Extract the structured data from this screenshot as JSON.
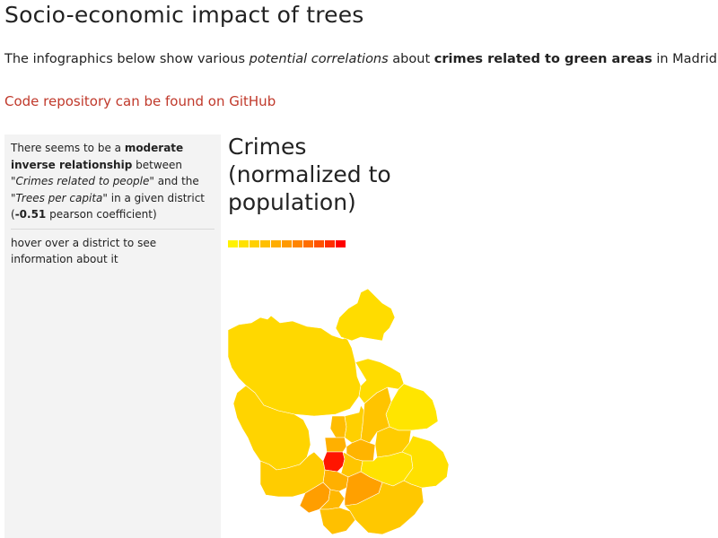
{
  "page": {
    "title": "Socio-economic impact of trees",
    "intro": {
      "p1": "The infographics below show various ",
      "em": "potential correlations",
      "p2": " about ",
      "strong": "crimes related to green areas",
      "p3": " in Madrid."
    },
    "repo_link": "Code repository can be found on GitHub"
  },
  "sidebar": {
    "summary": {
      "t1": "There seems to be a ",
      "b1": "moderate inverse relationship",
      "t2": " between ",
      "i1": "\"Crimes related to people\"",
      "t3": " and the ",
      "i2": "\"Trees per capita\"",
      "t4": " in a given district (",
      "b2": "-0.51",
      "t5": " pearson coefficient)"
    },
    "hint": "hover over a district to see information about it"
  },
  "map": {
    "title": "Crimes (normalized to population)",
    "legend_colors": [
      "#fff200",
      "#ffe100",
      "#ffd000",
      "#ffbf00",
      "#ffad00",
      "#ff9a00",
      "#ff8500",
      "#ff6e00",
      "#ff5200",
      "#ff2e00",
      "#ff0000"
    ],
    "district_colors": {
      "fuencarral": "#ffd800",
      "moncloa": "#ffd400",
      "hortaleza": "#ffdc00",
      "barajas": "#ffe500",
      "tetuan": "#ffbd00",
      "chamartin": "#ffd000",
      "chamberi": "#ffb000",
      "ciudad_lineal": "#ffc400",
      "san_blas": "#ffcc00",
      "latina": "#ffcc00",
      "centro": "#ff1500",
      "arganzuela": "#ffb000",
      "retiro": "#ffc600",
      "salamanca": "#ffb400",
      "moratalaz": "#ffe200",
      "vicalvaro": "#ffe000",
      "carabanchel": "#ff9e00",
      "usera": "#ffb800",
      "puente_vallecas": "#ffa000",
      "villaverde": "#ffc000",
      "villa_vallecas": "#ffc800"
    }
  }
}
